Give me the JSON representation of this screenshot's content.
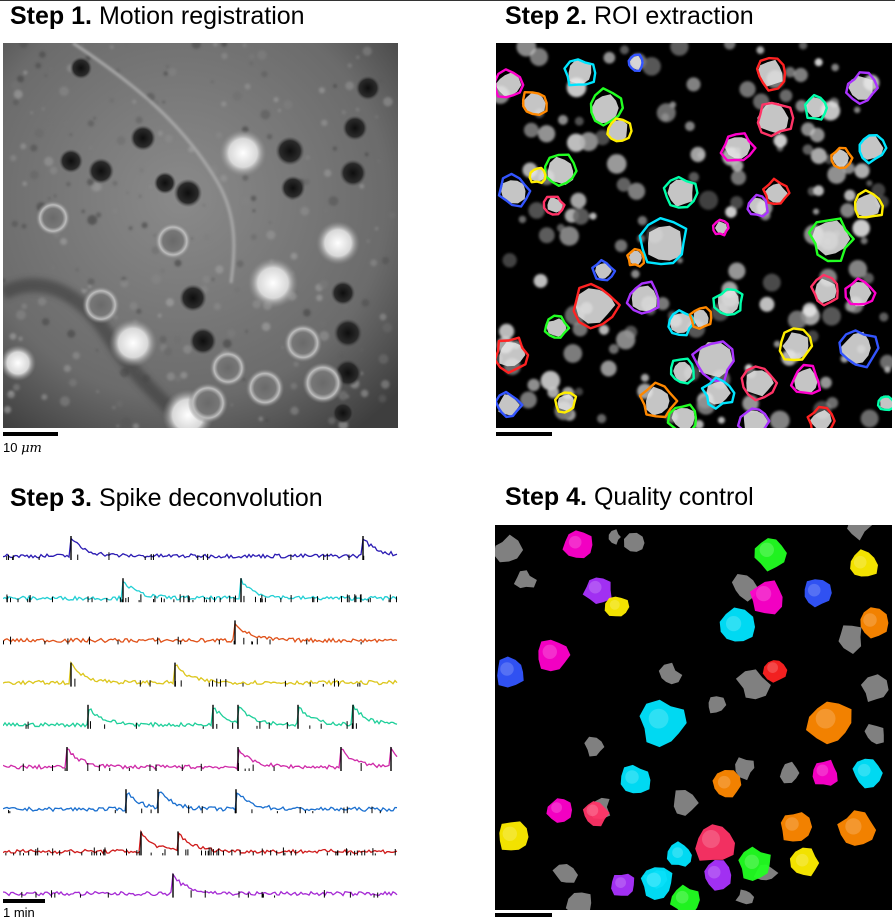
{
  "steps": [
    {
      "bold": "Step 1.",
      "text": "Motion registration"
    },
    {
      "bold": "Step 2.",
      "text": "ROI extraction"
    },
    {
      "bold": "Step 3.",
      "text": "Spike deconvolution"
    },
    {
      "bold": "Step 4.",
      "text": "Quality control"
    }
  ],
  "scalebars": {
    "image_value": "10 ",
    "image_unit": "μm",
    "trace": "1 min"
  },
  "colors": {
    "trace_colors": [
      "#2b1bb3",
      "#22cfd4",
      "#e0521a",
      "#dcc61c",
      "#1fcf9a",
      "#cf2aa8",
      "#1a6fcf",
      "#cf1a1a",
      "#a52ad4"
    ],
    "roi_colors": [
      "#ff00cc",
      "#00e5ff",
      "#ff8800",
      "#22ff22",
      "#ffee00",
      "#3355ff",
      "#ff2222",
      "#aa33ff",
      "#00ffaa",
      "#ff3366"
    ],
    "rejected": "#808080",
    "background_black": "#000000"
  }
}
